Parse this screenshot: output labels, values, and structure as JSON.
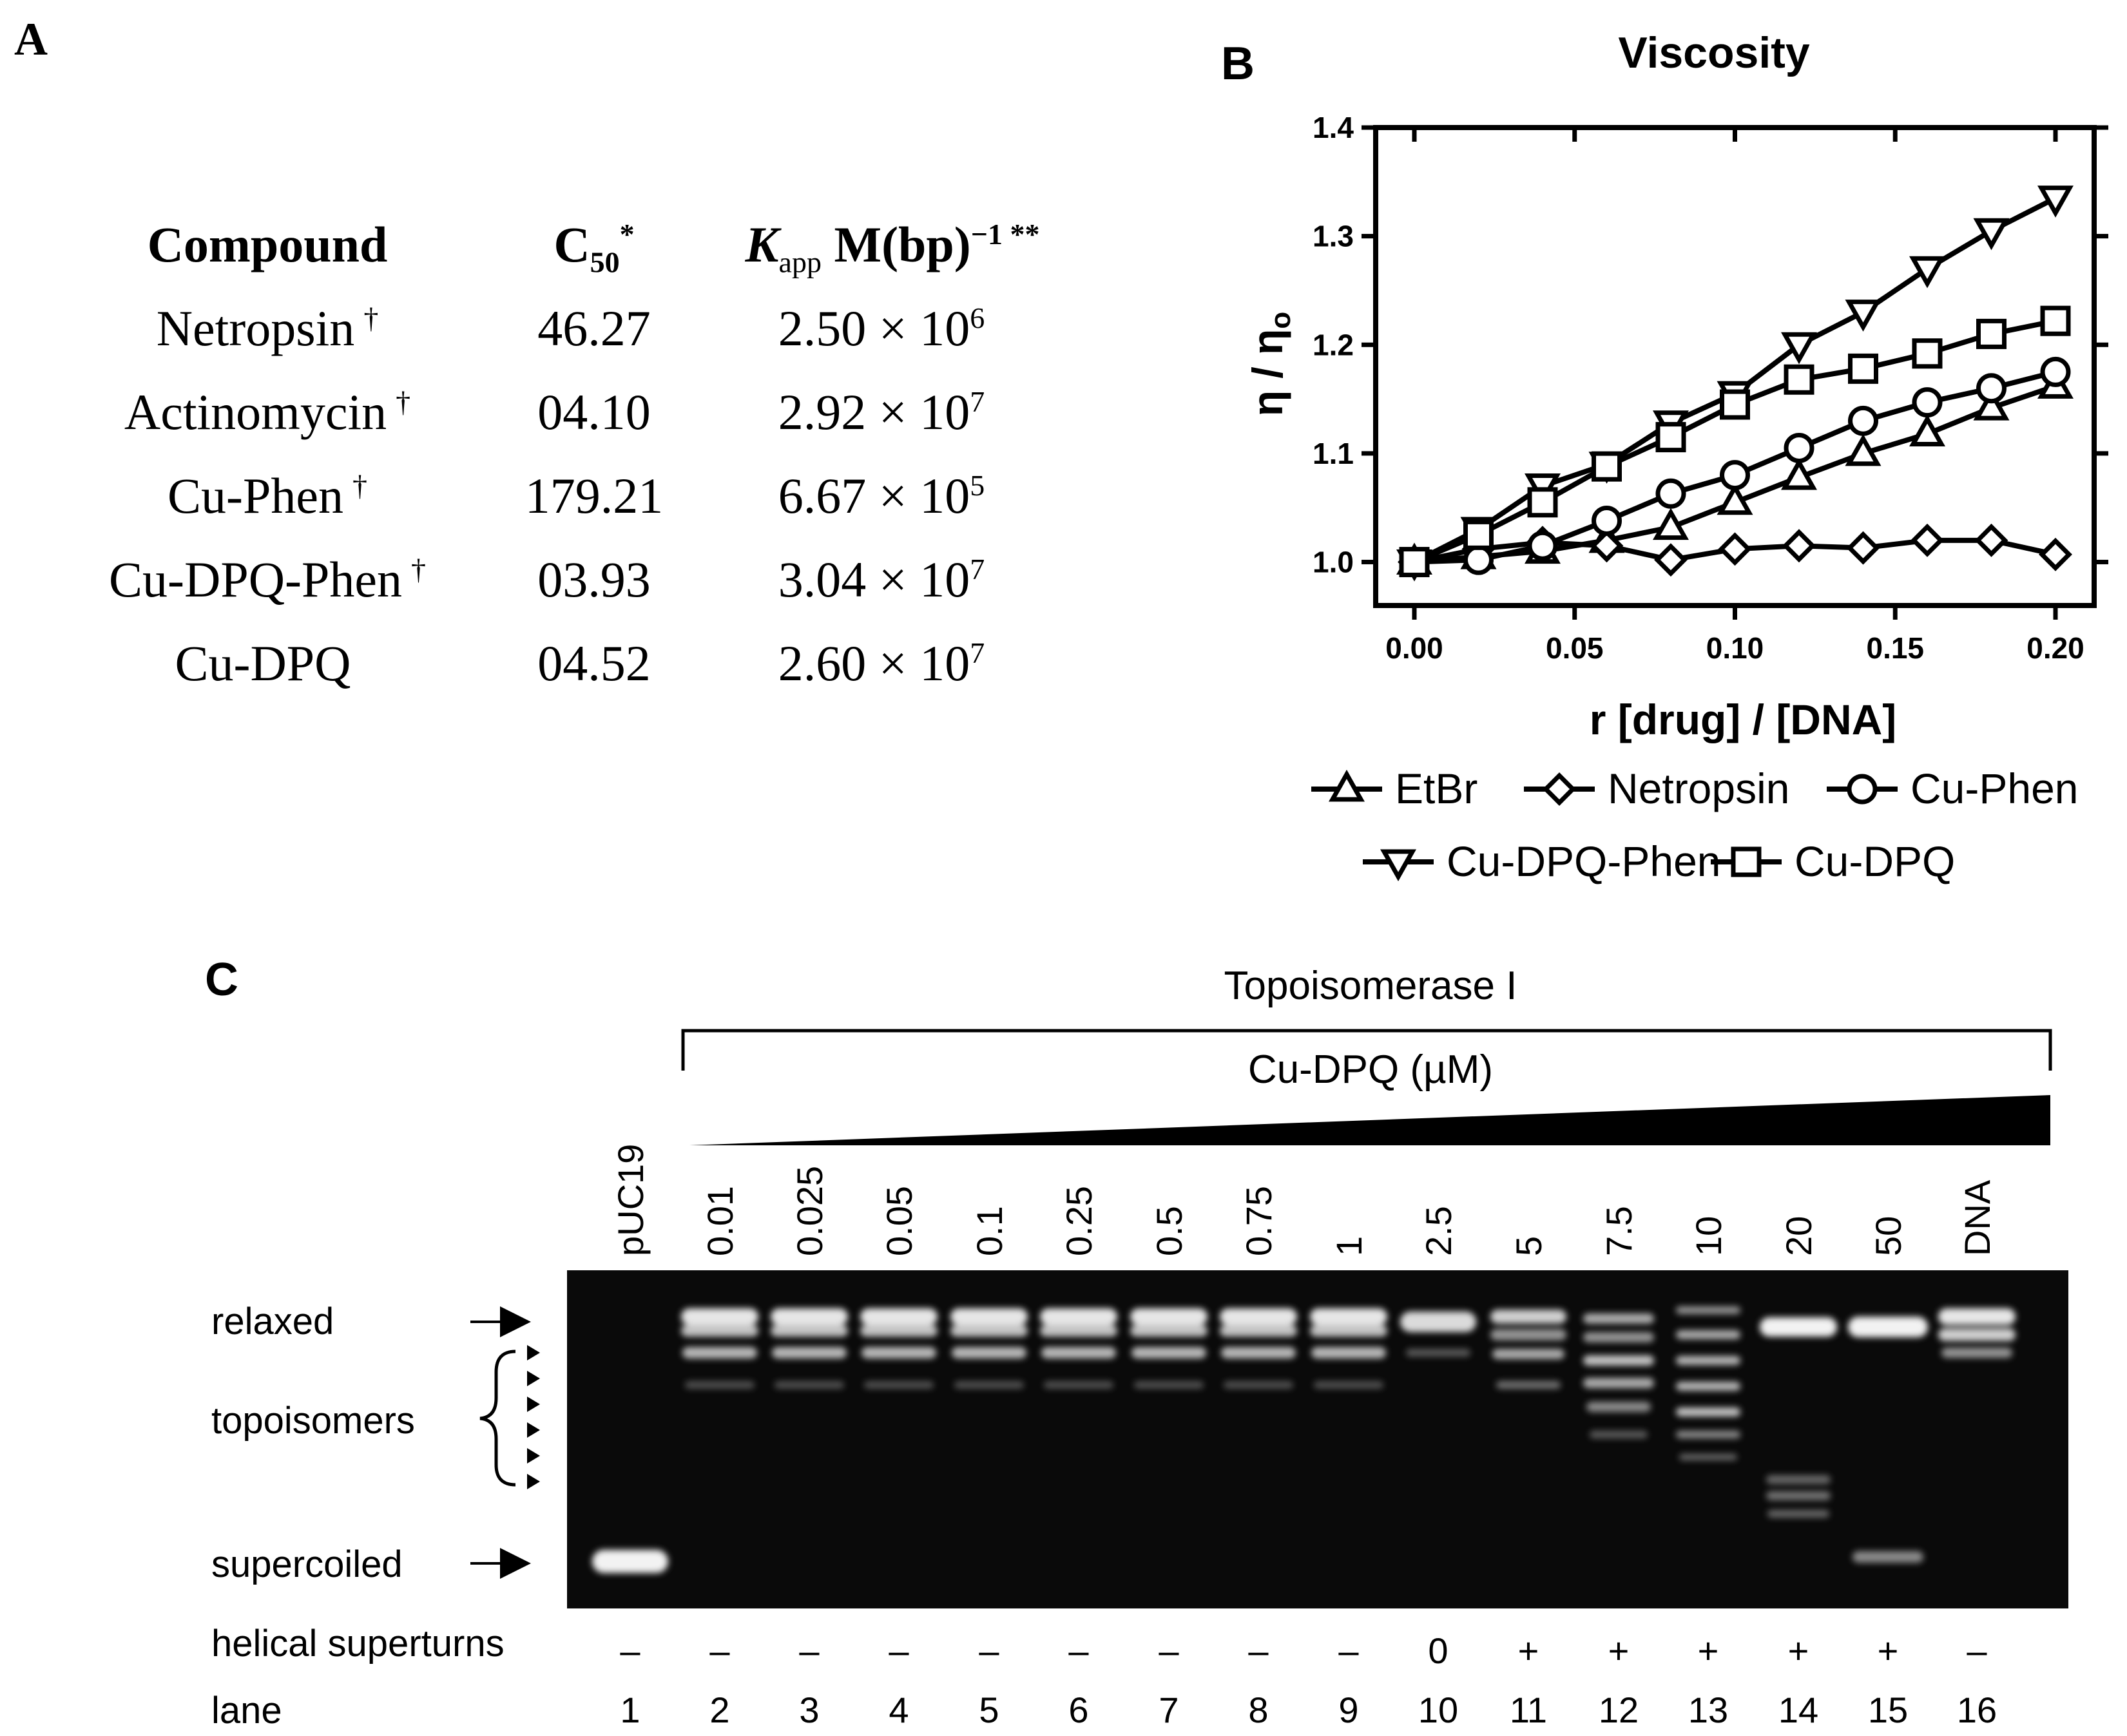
{
  "panel_a": {
    "letter": "A",
    "headers": {
      "compound": "Compound",
      "c50_base": "C",
      "c50_sub": "50",
      "c50_sup": "*",
      "kapp_base": "K",
      "kapp_sub": "app",
      "kapp_unit": " M(bp)",
      "kapp_sup": "−1 **"
    },
    "rows": [
      {
        "compound": "Netropsin",
        "mark": "†",
        "c50": "46.27",
        "k_mant": "2.50 × 10",
        "k_exp": "6"
      },
      {
        "compound": "Actinomycin",
        "mark": "†",
        "c50": "04.10",
        "k_mant": "2.92 × 10",
        "k_exp": "7"
      },
      {
        "compound": "Cu-Phen",
        "mark": "†",
        "c50": "179.21",
        "k_mant": "6.67 × 10",
        "k_exp": "5"
      },
      {
        "compound": "Cu-DPQ-Phen",
        "mark": "†",
        "c50": "03.93",
        "k_mant": "3.04 × 10",
        "k_exp": "7"
      },
      {
        "compound": "Cu-DPQ",
        "mark": "",
        "c50": "04.52",
        "k_mant": "2.60 × 10",
        "k_exp": "7"
      }
    ]
  },
  "chart_data": {
    "type": "line",
    "panel_letter": "B",
    "title": "Viscosity",
    "xlabel": "r [drug] / [DNA]",
    "ylabel": "η / η",
    "ylabel_sub": "o",
    "xlim": [
      0,
      0.2
    ],
    "ylim": [
      0.96,
      1.4
    ],
    "xticks": [
      0.0,
      0.05,
      0.1,
      0.15,
      0.2
    ],
    "xtick_labels": [
      "0.00",
      "0.05",
      "0.10",
      "0.15",
      "0.20"
    ],
    "yticks": [
      1.0,
      1.1,
      1.2,
      1.3,
      1.4
    ],
    "ytick_labels": [
      "1.0",
      "1.1",
      "1.2",
      "1.3",
      "1.4"
    ],
    "series": [
      {
        "name": "EtBr",
        "marker": "triangle-up",
        "x": [
          0,
          0.02,
          0.04,
          0.06,
          0.08,
          0.1,
          0.12,
          0.14,
          0.16,
          0.18,
          0.2
        ],
        "y": [
          1.0,
          1.005,
          1.01,
          1.02,
          1.032,
          1.055,
          1.078,
          1.1,
          1.118,
          1.142,
          1.162
        ]
      },
      {
        "name": "Netropsin",
        "marker": "diamond",
        "x": [
          0,
          0.02,
          0.04,
          0.06,
          0.08,
          0.1,
          0.12,
          0.14,
          0.16,
          0.18,
          0.2
        ],
        "y": [
          1.0,
          1.012,
          1.018,
          1.015,
          1.002,
          1.012,
          1.015,
          1.013,
          1.02,
          1.02,
          1.007
        ]
      },
      {
        "name": "Cu-Phen",
        "marker": "circle",
        "x": [
          0,
          0.02,
          0.04,
          0.06,
          0.08,
          0.1,
          0.12,
          0.14,
          0.16,
          0.18,
          0.2
        ],
        "y": [
          1.0,
          1.002,
          1.015,
          1.038,
          1.063,
          1.08,
          1.105,
          1.13,
          1.147,
          1.16,
          1.175
        ]
      },
      {
        "name": "Cu-DPQ-Phen",
        "marker": "triangle-down",
        "x": [
          0,
          0.02,
          0.04,
          0.06,
          0.08,
          0.1,
          0.12,
          0.14,
          0.16,
          0.18,
          0.2
        ],
        "y": [
          1.0,
          1.03,
          1.07,
          1.09,
          1.128,
          1.155,
          1.2,
          1.23,
          1.27,
          1.305,
          1.335
        ]
      },
      {
        "name": "Cu-DPQ",
        "marker": "square",
        "x": [
          0,
          0.02,
          0.04,
          0.06,
          0.08,
          0.1,
          0.12,
          0.14,
          0.16,
          0.18,
          0.2
        ],
        "y": [
          1.0,
          1.025,
          1.055,
          1.088,
          1.115,
          1.145,
          1.168,
          1.178,
          1.192,
          1.21,
          1.222
        ]
      }
    ]
  },
  "panel_c": {
    "letter": "C",
    "enzyme": "Topoisomerase I",
    "compound_label": "Cu-DPQ (µM)",
    "lane_labels": [
      "pUC19",
      "0.01",
      "0.025",
      "0.05",
      "0.1",
      "0.25",
      "0.5",
      "0.75",
      "1",
      "2.5",
      "5",
      "7.5",
      "10",
      "20",
      "50",
      "DNA"
    ],
    "left_labels": {
      "relaxed": "relaxed",
      "topoisomers": "topoisomers",
      "supercoiled": "supercoiled"
    },
    "superturns_label": "helical superturns",
    "superturns": [
      "–",
      "–",
      "–",
      "–",
      "–",
      "–",
      "–",
      "–",
      "–",
      "0",
      "+",
      "+",
      "+",
      "+",
      "+",
      "–"
    ],
    "lane_label": "lane",
    "lane_numbers": [
      "1",
      "2",
      "3",
      "4",
      "5",
      "6",
      "7",
      "8",
      "9",
      "10",
      "11",
      "12",
      "13",
      "14",
      "15",
      "16"
    ],
    "gel_color": "#0a0a0a",
    "band_color": "#f2f2f2"
  }
}
